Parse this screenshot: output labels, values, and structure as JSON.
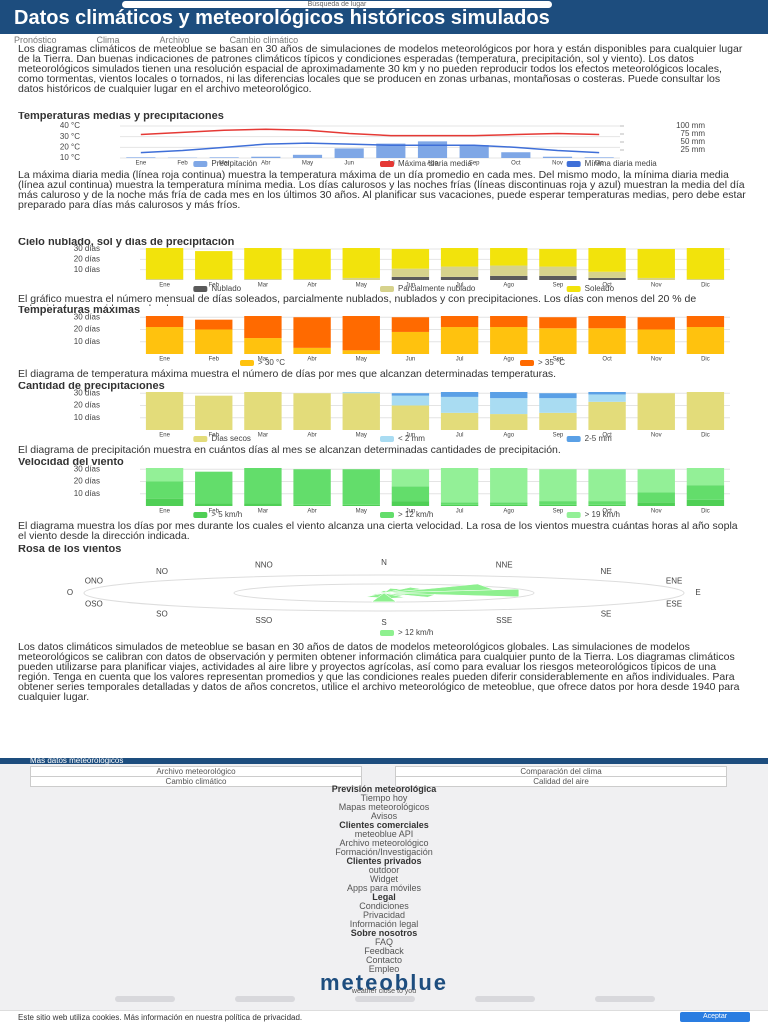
{
  "header": {
    "title": "Datos climáticos y meteorológicos históricos simulados",
    "search": "Búsqueda de lugar"
  },
  "tabs": [
    "Pronóstico",
    "Clima",
    "Archivo",
    "Cambio climático"
  ],
  "paragraphs": [
    "Los diagramas climáticos de meteoblue se basan en 30 años de simulaciones de modelos meteorológicos por hora y están disponibles para cualquier lugar de la Tierra. Dan buenas indicaciones de patrones climáticos típicos y condiciones esperadas (temperatura, precipitación, sol y viento). Los datos meteorológicos simulados tienen una resolución espacial de aproximadamente 30 km y no pueden reproducir todos los efectos meteorológicos locales, como tormentas, vientos locales o tornados, ni las diferencias locales que se producen en zonas urbanas, montañosas o costeras. Puede consultar los datos históricos de cualquier lugar en el archivo meteorológico.",
    "La máxima diaria media (línea roja continua) muestra la temperatura máxima de un día promedio en cada mes. Del mismo modo, la mínima diaria media (línea azul continua) muestra la temperatura mínima media. Los días calurosos y las noches frías (líneas discontinuas roja y azul) muestran la media del día más caluroso y de la noche más fría de cada mes en los últimos 30 años. Al planificar sus vacaciones, puede esperar temperaturas medias, pero debe estar preparado para días más calurosos y más fríos.",
    "El gráfico muestra el número mensual de días soleados, parcialmente nublados, nublados y con precipitaciones. Los días con menos del 20 % de nubosidad se consideran soleados.",
    "El diagrama de temperatura máxima muestra el número de días por mes que alcanzan determinadas temperaturas.",
    "El diagrama de precipitación muestra en cuántos días al mes se alcanzan determinadas cantidades de precipitación.",
    "El diagrama muestra los días por mes durante los cuales el viento alcanza una cierta velocidad. La rosa de los vientos muestra cuántas horas al año sopla el viento desde la dirección indicada.",
    "Los datos climáticos simulados de meteoblue se basan en 30 años de datos de modelos meteorológicos globales. Las simulaciones de modelos meteorológicos se calibran con datos de observación y permiten obtener información climática para cualquier punto de la Tierra. Los diagramas climáticos pueden utilizarse para planificar viajes, actividades al aire libre y proyectos agrícolas, así como para evaluar los riesgos meteorológicos típicos de una región. Tenga en cuenta que los valores representan promedios y que las condiciones reales pueden diferir considerablemente en años individuales. Para obtener series temporales detalladas y datos de años concretos, utilice el archivo meteorológico de meteoblue, que ofrece datos por hora desde 1940 para cualquier lugar."
  ],
  "chart_data": [
    {
      "type": "combo",
      "title": "Temperaturas medias y precipitaciones",
      "categories": [
        "Ene",
        "Feb",
        "Mar",
        "Abr",
        "May",
        "Jun",
        "Jul",
        "Ago",
        "Sep",
        "Oct",
        "Nov",
        "Dic"
      ],
      "series": [
        {
          "name": "Precipitación",
          "color": "#7fa7e6",
          "kind": "bar",
          "axis": "y2",
          "values": [
            2,
            1,
            2,
            4,
            10,
            30,
            45,
            52,
            40,
            18,
            4,
            2
          ]
        },
        {
          "name": "Máxima diaria media",
          "color": "#e53935",
          "kind": "line",
          "values": [
            32,
            34,
            36,
            37,
            36,
            33,
            31,
            31,
            31,
            32,
            33,
            32
          ]
        },
        {
          "name": "Mínima diaria media",
          "color": "#3f6fd8",
          "kind": "line",
          "values": [
            15,
            17,
            20,
            23,
            24,
            23,
            22,
            22,
            22,
            20,
            17,
            15
          ]
        }
      ],
      "ylim": [
        10,
        40
      ],
      "yticks": [
        {
          "value": 10,
          "label": "10 °C"
        },
        {
          "value": 20,
          "label": "20 °C"
        },
        {
          "value": 30,
          "label": "30 °C"
        },
        {
          "value": 40,
          "label": "40 °C"
        }
      ],
      "y2lim": [
        0,
        100
      ],
      "y2ticks": [
        {
          "value": 25,
          "label": "25 mm"
        },
        {
          "value": 50,
          "label": "50 mm"
        },
        {
          "value": 75,
          "label": "75 mm"
        },
        {
          "value": 100,
          "label": "100 mm"
        }
      ],
      "grid": true
    },
    {
      "type": "stacked_bar",
      "title": "Cielo nublado, sol y días de precipitación",
      "categories": [
        "Ene",
        "Feb",
        "Mar",
        "Abr",
        "May",
        "Jun",
        "Jul",
        "Ago",
        "Sep",
        "Oct",
        "Nov",
        "Dic"
      ],
      "series": [
        {
          "name": "Nublado",
          "color": "#5a5a5a",
          "values": [
            0,
            0,
            0,
            0,
            0,
            3,
            3,
            4,
            4,
            2,
            0,
            0
          ]
        },
        {
          "name": "Parcialmente nublado",
          "color": "#d6d28c",
          "values": [
            1,
            1,
            1,
            1,
            2,
            8,
            10,
            10,
            9,
            6,
            2,
            1
          ]
        },
        {
          "name": "Soleado",
          "color": "#f2e30c",
          "values": [
            30,
            27,
            30,
            29,
            29,
            19,
            18,
            17,
            17,
            23,
            28,
            30
          ]
        }
      ],
      "ylim": [
        0,
        31
      ],
      "yticks": [
        {
          "value": 10,
          "label": "10 días"
        },
        {
          "value": 20,
          "label": "20 días"
        },
        {
          "value": 30,
          "label": "30 días"
        }
      ],
      "grid": true
    },
    {
      "type": "stacked_bar",
      "title": "Temperaturas máximas",
      "categories": [
        "Ene",
        "Feb",
        "Mar",
        "Abr",
        "May",
        "Jun",
        "Jul",
        "Ago",
        "Sep",
        "Oct",
        "Nov",
        "Dic"
      ],
      "series": [
        {
          "name": "> 30 °C",
          "color": "#ffc20e",
          "values": [
            22,
            20,
            13,
            5,
            3,
            18,
            22,
            22,
            21,
            21,
            20,
            22
          ]
        },
        {
          "name": "> 35 °C",
          "color": "#ff6a00",
          "values": [
            9,
            8,
            18,
            25,
            28,
            12,
            9,
            9,
            9,
            10,
            10,
            9
          ]
        }
      ],
      "ylim": [
        0,
        31
      ],
      "yticks": [
        {
          "value": 10,
          "label": "10 días"
        },
        {
          "value": 20,
          "label": "20 días"
        },
        {
          "value": 30,
          "label": "30 días"
        }
      ],
      "grid": true
    },
    {
      "type": "stacked_bar",
      "title": "Cantidad de precipitaciones",
      "categories": [
        "Ene",
        "Feb",
        "Mar",
        "Abr",
        "May",
        "Jun",
        "Jul",
        "Ago",
        "Sep",
        "Oct",
        "Nov",
        "Dic"
      ],
      "series": [
        {
          "name": "Días secos",
          "color": "#e3dc7a",
          "values": [
            31,
            28,
            31,
            30,
            30,
            20,
            14,
            13,
            14,
            23,
            30,
            31
          ]
        },
        {
          "name": "< 2 mm",
          "color": "#a9dcf2",
          "values": [
            0,
            0,
            0,
            0,
            1,
            8,
            13,
            13,
            12,
            6,
            0,
            0
          ]
        },
        {
          "name": "2-5 mm",
          "color": "#5aa0e6",
          "values": [
            0,
            0,
            0,
            0,
            0,
            2,
            4,
            5,
            4,
            2,
            0,
            0
          ]
        }
      ],
      "ylim": [
        0,
        31
      ],
      "yticks": [
        {
          "value": 10,
          "label": "10 días"
        },
        {
          "value": 20,
          "label": "20 días"
        },
        {
          "value": 30,
          "label": "30 días"
        }
      ],
      "grid": true
    },
    {
      "type": "stacked_bar",
      "title": "Velocidad del viento",
      "categories": [
        "Ene",
        "Feb",
        "Mar",
        "Abr",
        "May",
        "Jun",
        "Jul",
        "Ago",
        "Sep",
        "Oct",
        "Nov",
        "Dic"
      ],
      "series": [
        {
          "name": "> 5 km/h",
          "color": "#4fcf55",
          "values": [
            6,
            2,
            2,
            1,
            1,
            4,
            1,
            1,
            1,
            1,
            3,
            5
          ]
        },
        {
          "name": "> 12 km/h",
          "color": "#63dd6b",
          "values": [
            14,
            26,
            29,
            29,
            29,
            12,
            2,
            2,
            3,
            3,
            8,
            12
          ]
        },
        {
          "name": "> 19 km/h",
          "color": "#93f097",
          "values": [
            11,
            0,
            0,
            0,
            0,
            14,
            28,
            28,
            26,
            26,
            19,
            14
          ]
        }
      ],
      "ylim": [
        0,
        31
      ],
      "yticks": [
        {
          "value": 10,
          "label": "10 días"
        },
        {
          "value": 20,
          "label": "20 días"
        },
        {
          "value": 30,
          "label": "30 días"
        }
      ],
      "grid": true
    },
    {
      "type": "polar",
      "title": "Rosa de los vientos",
      "categories": [
        "N",
        "NNE",
        "NE",
        "ENE",
        "E",
        "ESE",
        "SE",
        "SSE",
        "S",
        "SSO",
        "SO",
        "OSO",
        "O",
        "ONO",
        "NO",
        "NNO"
      ],
      "series": [
        {
          "name": "> 12 km/h",
          "color": "#8ef08f",
          "values": [
            120,
            260,
            380,
            900,
            1100,
            420,
            200,
            300,
            500,
            260,
            120,
            80,
            70,
            60,
            60,
            80
          ]
        }
      ],
      "rlim": [
        0,
        1200
      ]
    }
  ],
  "footer": {
    "more_title": "Más datos meteorológicos",
    "buttons": [
      "Archivo meteorológico",
      "Comparación del clima",
      "Cambio climático",
      "Calidad del aire"
    ],
    "menu": [
      "Previsión meteorológica",
      "Tiempo hoy",
      "Mapas meteorológicos",
      "Avisos",
      "Clientes comerciales",
      "meteoblue API",
      "Archivo meteorológico",
      "Formación/Investigación",
      "Clientes privados",
      "outdoor",
      "Widget",
      "Apps para móviles",
      "Legal",
      "Condiciones",
      "Privacidad",
      "Información legal",
      "Sobre nosotros",
      "FAQ",
      "Feedback",
      "Contacto",
      "Empleo"
    ],
    "logo": "meteoblue",
    "tagline": "weather close to you",
    "social": [
      "Facebook",
      "Twitter",
      "LinkedIn",
      "YouTube",
      "Instagram"
    ],
    "cookie": "Este sitio web utiliza cookies. Más información en nuestra política de privacidad.",
    "accept": "Aceptar"
  }
}
